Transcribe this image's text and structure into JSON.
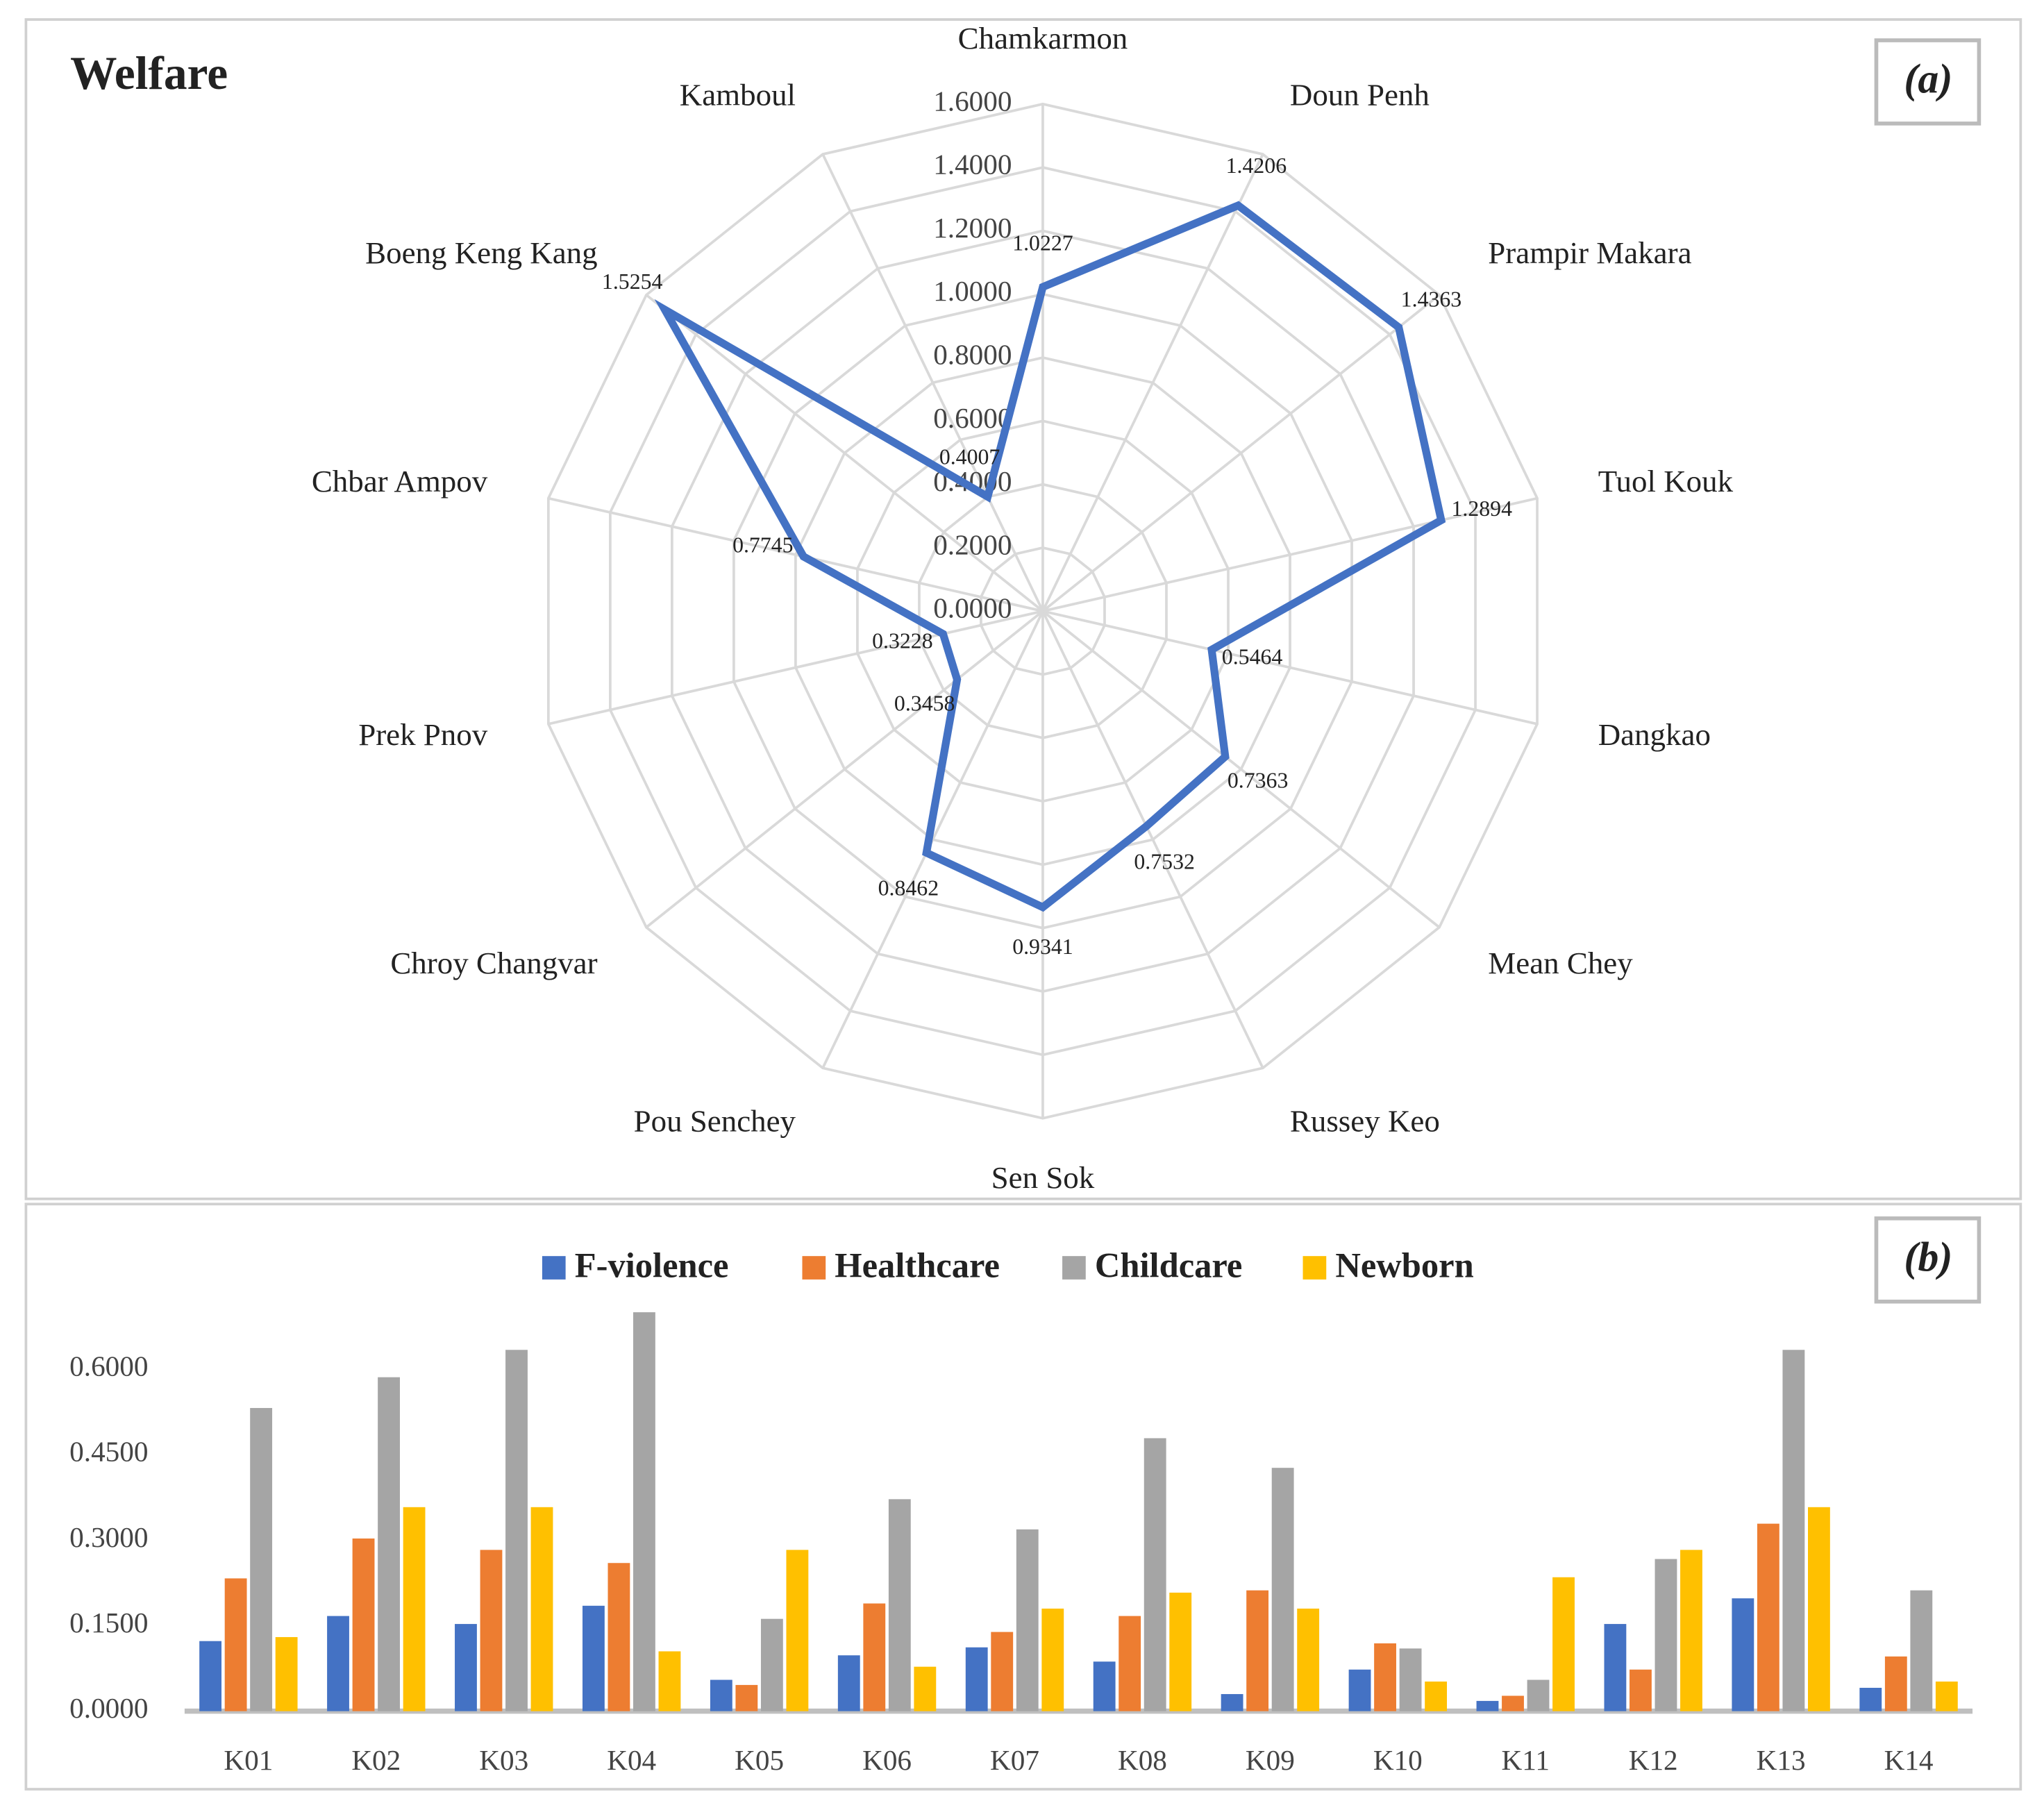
{
  "chart_data": [
    {
      "type": "radar",
      "title": "Welfare",
      "panel_label": "(a)",
      "categories": [
        "Chamkarmon",
        "Doun Penh",
        "Prampir Makara",
        "Tuol Kouk",
        "Dangkao",
        "Mean Chey",
        "Russey Keo",
        "Sen Sok",
        "Pou Senchey",
        "Chroy Changvar",
        "Prek Pnov",
        "Chbar Ampov",
        "Boeng Keng Kang",
        "Kamboul"
      ],
      "values": [
        1.0227,
        1.4206,
        1.4363,
        1.2894,
        0.5464,
        0.7363,
        0.7532,
        0.9341,
        0.8462,
        0.3458,
        0.3228,
        0.7745,
        1.5254,
        0.4007
      ],
      "color": "#4472c4",
      "rlim": [
        0,
        1.6
      ],
      "rticks": [
        {
          "value": 0,
          "label": "0.0000"
        },
        {
          "value": 0.2,
          "label": "0.2000"
        },
        {
          "value": 0.4,
          "label": "0.4000"
        },
        {
          "value": 0.6,
          "label": "0.6000"
        },
        {
          "value": 0.8,
          "label": "0.8000"
        },
        {
          "value": 1.0,
          "label": "1.0000"
        },
        {
          "value": 1.2,
          "label": "1.2000"
        },
        {
          "value": 1.4,
          "label": "1.4000"
        },
        {
          "value": 1.6,
          "label": "1.6000"
        }
      ]
    },
    {
      "type": "bar",
      "panel_label": "(b)",
      "categories": [
        "K01",
        "K02",
        "K03",
        "K04",
        "K05",
        "K06",
        "K07",
        "K08",
        "K09",
        "K10",
        "K11",
        "K12",
        "K13",
        "K14"
      ],
      "series": [
        {
          "name": "F-violence",
          "color": "#4472c4",
          "values": [
            0.123,
            0.167,
            0.153,
            0.185,
            0.055,
            0.098,
            0.112,
            0.087,
            0.03,
            0.073,
            0.018,
            0.153,
            0.198,
            0.041
          ]
        },
        {
          "name": "Healthcare",
          "color": "#ed7d31",
          "values": [
            0.233,
            0.303,
            0.283,
            0.26,
            0.046,
            0.189,
            0.139,
            0.167,
            0.212,
            0.119,
            0.027,
            0.073,
            0.329,
            0.096
          ]
        },
        {
          "name": "Childcare",
          "color": "#a5a5a5",
          "values": [
            0.532,
            0.586,
            0.634,
            0.7,
            0.162,
            0.372,
            0.319,
            0.479,
            0.427,
            0.11,
            0.055,
            0.267,
            0.634,
            0.212
          ]
        },
        {
          "name": "Newborn",
          "color": "#ffc000",
          "values": [
            0.13,
            0.358,
            0.358,
            0.105,
            0.283,
            0.078,
            0.18,
            0.208,
            0.18,
            0.052,
            0.235,
            0.283,
            0.358,
            0.052
          ]
        }
      ],
      "ylim": [
        0,
        0.7
      ],
      "yticks": [
        {
          "value": 0,
          "label": "0.0000"
        },
        {
          "value": 0.15,
          "label": "0.1500"
        },
        {
          "value": 0.3,
          "label": "0.3000"
        },
        {
          "value": 0.45,
          "label": "0.4500"
        },
        {
          "value": 0.6,
          "label": "0.6000"
        }
      ],
      "legend": "top"
    }
  ]
}
